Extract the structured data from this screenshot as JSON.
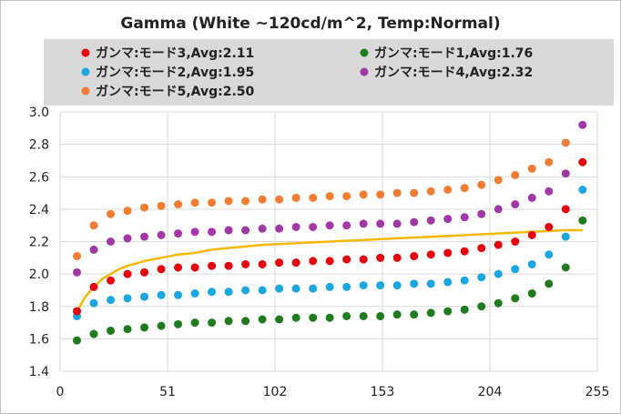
{
  "chart_data": {
    "type": "scatter",
    "title": "Gamma (White ~120cd/m^2, Temp:Normal)",
    "xlabel": "",
    "ylabel": "",
    "xlim": [
      0,
      255
    ],
    "ylim": [
      1.4,
      3.0
    ],
    "xticks": [
      "0",
      "51",
      "102",
      "153",
      "204",
      "255"
    ],
    "yticks": [
      "1.4",
      "1.6",
      "1.8",
      "2.0",
      "2.2",
      "2.4",
      "2.6",
      "2.8",
      "3.0"
    ],
    "grid": "horizontal",
    "legend": "top",
    "x": [
      8,
      16,
      24,
      32,
      40,
      48,
      56,
      64,
      72,
      80,
      88,
      96,
      104,
      112,
      120,
      128,
      136,
      144,
      152,
      160,
      168,
      176,
      184,
      192,
      200,
      208,
      216,
      224,
      232,
      240
    ],
    "series": [
      {
        "name": "ガンマ:モード3,Avg:2.11",
        "color": "#e8000b",
        "values": [
          1.77,
          1.92,
          1.96,
          2.0,
          2.01,
          2.03,
          2.04,
          2.04,
          2.05,
          2.05,
          2.06,
          2.06,
          2.07,
          2.07,
          2.08,
          2.08,
          2.09,
          2.09,
          2.1,
          2.1,
          2.11,
          2.12,
          2.13,
          2.14,
          2.16,
          2.18,
          2.2,
          2.24,
          2.29,
          2.4
        ]
      },
      {
        "name": "ガンマ:モード1,Avg:1.76",
        "color": "#1e7b1e",
        "values": [
          1.59,
          1.63,
          1.65,
          1.66,
          1.67,
          1.68,
          1.69,
          1.7,
          1.7,
          1.71,
          1.71,
          1.72,
          1.72,
          1.73,
          1.73,
          1.73,
          1.74,
          1.74,
          1.74,
          1.75,
          1.75,
          1.76,
          1.77,
          1.78,
          1.8,
          1.82,
          1.85,
          1.88,
          1.94,
          2.04
        ]
      },
      {
        "name": "ガンマ:モード2,Avg:1.95",
        "color": "#1aa7e0",
        "values": [
          1.74,
          1.82,
          1.84,
          1.85,
          1.86,
          1.87,
          1.87,
          1.88,
          1.89,
          1.89,
          1.9,
          1.9,
          1.91,
          1.91,
          1.91,
          1.92,
          1.92,
          1.93,
          1.93,
          1.93,
          1.94,
          1.94,
          1.95,
          1.96,
          1.98,
          2.0,
          2.03,
          2.06,
          2.12,
          2.23
        ]
      },
      {
        "name": "ガンマ:モード4,Avg:2.32",
        "color": "#a238a8",
        "values": [
          2.01,
          2.15,
          2.2,
          2.22,
          2.23,
          2.24,
          2.25,
          2.26,
          2.26,
          2.27,
          2.27,
          2.28,
          2.28,
          2.29,
          2.29,
          2.3,
          2.3,
          2.31,
          2.31,
          2.31,
          2.32,
          2.33,
          2.34,
          2.35,
          2.37,
          2.4,
          2.43,
          2.47,
          2.51,
          2.62
        ]
      },
      {
        "name": "ガンマ:モード5,Avg:2.50",
        "color": "#f07d32",
        "values": [
          2.11,
          2.3,
          2.37,
          2.39,
          2.41,
          2.42,
          2.43,
          2.44,
          2.44,
          2.45,
          2.45,
          2.46,
          2.46,
          2.47,
          2.47,
          2.48,
          2.48,
          2.49,
          2.49,
          2.5,
          2.5,
          2.51,
          2.52,
          2.53,
          2.55,
          2.58,
          2.61,
          2.65,
          2.69,
          2.81
        ]
      }
    ],
    "extra_points": [
      {
        "series": 0,
        "x": 248,
        "y": 2.69
      },
      {
        "series": 1,
        "x": 248,
        "y": 2.33
      },
      {
        "series": 2,
        "x": 248,
        "y": 2.52
      },
      {
        "series": 3,
        "x": 248,
        "y": 2.92
      }
    ],
    "reference_curve": {
      "color": "#f5b800",
      "x": [
        8,
        12,
        16,
        20,
        24,
        28,
        32,
        40,
        48,
        56,
        64,
        72,
        80,
        96,
        112,
        128,
        144,
        160,
        176,
        192,
        208,
        224,
        240,
        248
      ],
      "values": [
        1.77,
        1.86,
        1.92,
        1.97,
        2.0,
        2.03,
        2.05,
        2.08,
        2.1,
        2.12,
        2.13,
        2.15,
        2.16,
        2.18,
        2.19,
        2.2,
        2.21,
        2.22,
        2.23,
        2.24,
        2.25,
        2.26,
        2.27,
        2.27
      ]
    }
  }
}
